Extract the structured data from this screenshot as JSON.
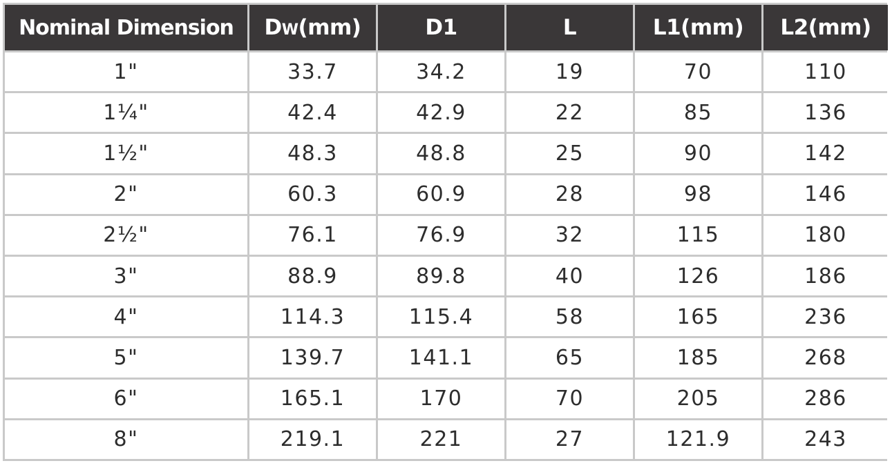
{
  "table": {
    "headers": [
      {
        "main": "Nominal Dimension",
        "sub": ""
      },
      {
        "main": "D",
        "sub": "W",
        "suffix": "(mm)"
      },
      {
        "main": "D1",
        "sub": ""
      },
      {
        "main": "L",
        "sub": ""
      },
      {
        "main": "L1(mm)",
        "sub": ""
      },
      {
        "main": "L2(mm)",
        "sub": ""
      }
    ],
    "rows": [
      [
        "1\"",
        "33.7",
        "34.2",
        "19",
        "70",
        "110"
      ],
      [
        "1¼\"",
        "42.4",
        "42.9",
        "22",
        "85",
        "136"
      ],
      [
        "1½\"",
        "48.3",
        "48.8",
        "25",
        "90",
        "142"
      ],
      [
        "2\"",
        "60.3",
        "60.9",
        "28",
        "98",
        "146"
      ],
      [
        "2½\"",
        "76.1",
        "76.9",
        "32",
        "115",
        "180"
      ],
      [
        "3\"",
        "88.9",
        "89.8",
        "40",
        "126",
        "186"
      ],
      [
        "4\"",
        "114.3",
        "115.4",
        "58",
        "165",
        "236"
      ],
      [
        "5\"",
        "139.7",
        "141.1",
        "65",
        "185",
        "268"
      ],
      [
        "6\"",
        "165.1",
        "170",
        "70",
        "205",
        "286"
      ],
      [
        "8\"",
        "219.1",
        "221",
        "27",
        "121.9",
        "243"
      ]
    ]
  }
}
